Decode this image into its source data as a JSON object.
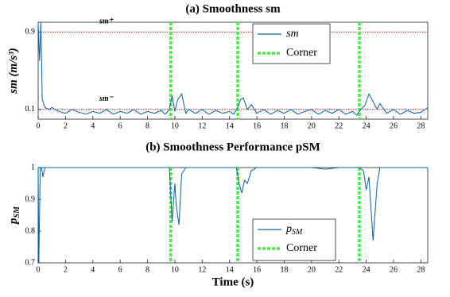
{
  "chart_data": [
    {
      "type": "line",
      "title": "(a) Smoothness sm",
      "ylabel": "sm (m/s³)",
      "xlim": [
        0,
        28.5
      ],
      "xticks": [
        0,
        2,
        4,
        6,
        8,
        10,
        12,
        14,
        16,
        18,
        20,
        22,
        24,
        26,
        28
      ],
      "ylim": [
        0,
        1
      ],
      "yticks": [
        0.1,
        0.9
      ],
      "x": [
        0,
        0.1,
        0.2,
        0.3,
        0.5,
        0.8,
        1,
        1.5,
        2,
        2.5,
        3,
        3.5,
        4,
        4.5,
        5,
        5.5,
        6,
        6.5,
        7,
        7.5,
        8,
        8.5,
        9,
        9.3,
        9.6,
        9.8,
        10,
        10.2,
        10.5,
        10.8,
        11,
        11.5,
        12,
        12.5,
        13,
        13.5,
        14,
        14.3,
        14.6,
        14.8,
        15,
        15.3,
        15.6,
        16,
        16.5,
        17,
        17.5,
        18,
        18.5,
        19,
        19.5,
        20,
        20.5,
        21,
        21.5,
        22,
        22.5,
        23,
        23.3,
        23.6,
        23.9,
        24.2,
        24.5,
        24.8,
        25,
        25.5,
        26,
        26.5,
        27,
        27.5,
        28,
        28.5
      ],
      "series": [
        {
          "name": "sm",
          "color": "#0b5fa5",
          "values": [
            0.98,
            0.6,
            1.0,
            0.2,
            0.12,
            0.1,
            0.12,
            0.08,
            0.06,
            0.1,
            0.07,
            0.05,
            0.08,
            0.06,
            0.1,
            0.05,
            0.08,
            0.06,
            0.1,
            0.05,
            0.08,
            0.06,
            0.09,
            0.05,
            0.1,
            0.24,
            0.08,
            0.2,
            0.26,
            0.06,
            0.1,
            0.06,
            0.1,
            0.05,
            0.09,
            0.06,
            0.08,
            0.05,
            0.12,
            0.2,
            0.22,
            0.1,
            0.15,
            0.06,
            0.1,
            0.05,
            0.09,
            0.06,
            0.1,
            0.05,
            0.08,
            0.1,
            0.05,
            0.09,
            0.06,
            0.1,
            0.05,
            0.08,
            0.04,
            0.1,
            0.14,
            0.26,
            0.18,
            0.1,
            0.16,
            0.06,
            0.1,
            0.05,
            0.09,
            0.06,
            0.07,
            0.12
          ]
        }
      ],
      "corner": {
        "name": "Corner",
        "color": "#44ee44",
        "x": [
          9.7,
          14.6,
          23.5
        ]
      },
      "thresholds": [
        {
          "value": 0.9,
          "label": "sm⁺",
          "color": "#dd1111"
        },
        {
          "value": 0.1,
          "label": "sm⁻",
          "color": "#dd1111"
        }
      ]
    },
    {
      "type": "line",
      "title": "(b) Smoothness Performance pSM",
      "ylabel": "p",
      "ylabel_sub": "SM",
      "xlabel": "Time (s)",
      "xlim": [
        0,
        28.5
      ],
      "xticks": [
        0,
        2,
        4,
        6,
        8,
        10,
        12,
        14,
        16,
        18,
        20,
        22,
        24,
        26,
        28
      ],
      "ylim": [
        0.7,
        1
      ],
      "yticks": [
        0.7,
        0.8,
        0.9,
        1
      ],
      "x": [
        0,
        0.05,
        0.15,
        0.25,
        0.35,
        0.5,
        1,
        2,
        4,
        6,
        8,
        9,
        9.6,
        9.8,
        10,
        10.1,
        10.3,
        10.5,
        10.8,
        11,
        12,
        14,
        14.5,
        14.7,
        14.9,
        15.1,
        15.3,
        15.6,
        16,
        18,
        20,
        21,
        22,
        23,
        23.5,
        23.8,
        24,
        24.2,
        24.5,
        24.8,
        25,
        26,
        27,
        28,
        28.5
      ],
      "series": [
        {
          "name": "p",
          "name_sub": "SM",
          "color": "#0b5fa5",
          "values": [
            1,
            0.7,
            1,
            1,
            0.97,
            1,
            1,
            1,
            1,
            1,
            1,
            1,
            1,
            0.83,
            0.95,
            0.88,
            0.82,
            0.98,
            1,
            1,
            1,
            1,
            1,
            0.95,
            0.92,
            0.96,
            0.95,
            0.99,
            1,
            1,
            1,
            0.995,
            1,
            1,
            1,
            0.99,
            0.93,
            0.97,
            0.77,
            0.95,
            1,
            1,
            1,
            1,
            1
          ]
        }
      ],
      "corner": {
        "name": "Corner",
        "color": "#44ee44",
        "x": [
          9.7,
          14.6,
          23.5
        ]
      }
    }
  ]
}
